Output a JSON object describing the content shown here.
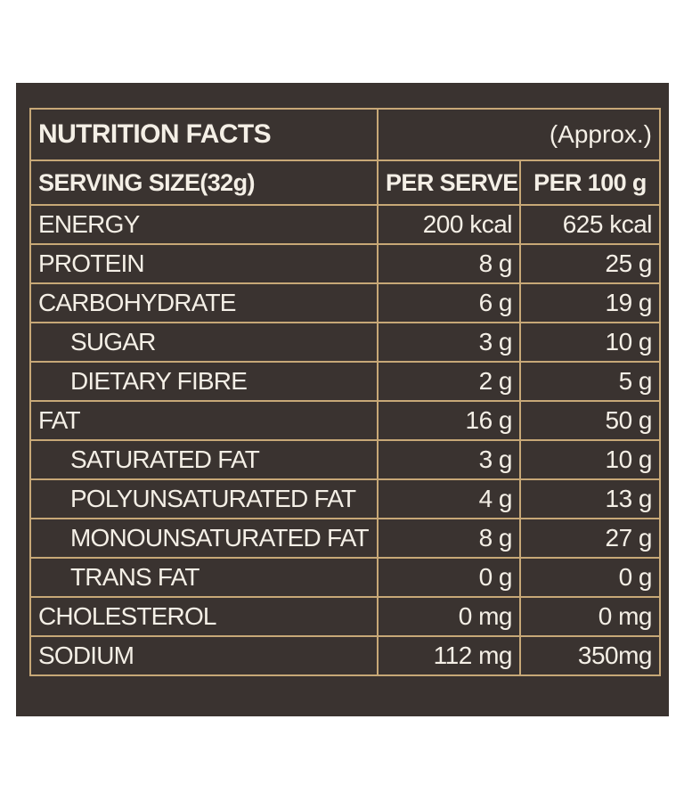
{
  "table": {
    "title": "NUTRITION FACTS",
    "approx": "(Approx.)",
    "serving_size": "SERVING SIZE(32g)",
    "col_per_serve": "PER SERVE",
    "col_per_100g": "PER 100 g",
    "rows": [
      {
        "name": "ENERGY",
        "per_serve": "200 kcal",
        "per_100g": "625 kcal",
        "indent": false
      },
      {
        "name": "PROTEIN",
        "per_serve": "8 g",
        "per_100g": "25 g",
        "indent": false
      },
      {
        "name": "CARBOHYDRATE",
        "per_serve": "6 g",
        "per_100g": "19 g",
        "indent": false
      },
      {
        "name": "SUGAR",
        "per_serve": "3 g",
        "per_100g": "10 g",
        "indent": true
      },
      {
        "name": "DIETARY FIBRE",
        "per_serve": "2 g",
        "per_100g": "5 g",
        "indent": true
      },
      {
        "name": "FAT",
        "per_serve": "16 g",
        "per_100g": "50 g",
        "indent": false
      },
      {
        "name": "SATURATED FAT",
        "per_serve": "3 g",
        "per_100g": "10 g",
        "indent": true
      },
      {
        "name": "POLYUNSATURATED FAT",
        "per_serve": "4 g",
        "per_100g": "13 g",
        "indent": true
      },
      {
        "name": "MONOUNSATURATED FAT",
        "per_serve": "8 g",
        "per_100g": "27 g",
        "indent": true
      },
      {
        "name": "TRANS FAT",
        "per_serve": "0 g",
        "per_100g": "0 g",
        "indent": true
      },
      {
        "name": "CHOLESTEROL",
        "per_serve": "0 mg",
        "per_100g": "0 mg",
        "indent": false
      },
      {
        "name": "SODIUM",
        "per_serve": "112 mg",
        "per_100g": "350mg",
        "indent": false
      }
    ]
  },
  "colors": {
    "panel_background": "#3a3330",
    "border": "#c7a877",
    "text": "#f4efe6",
    "page_background": "#ffffff"
  }
}
